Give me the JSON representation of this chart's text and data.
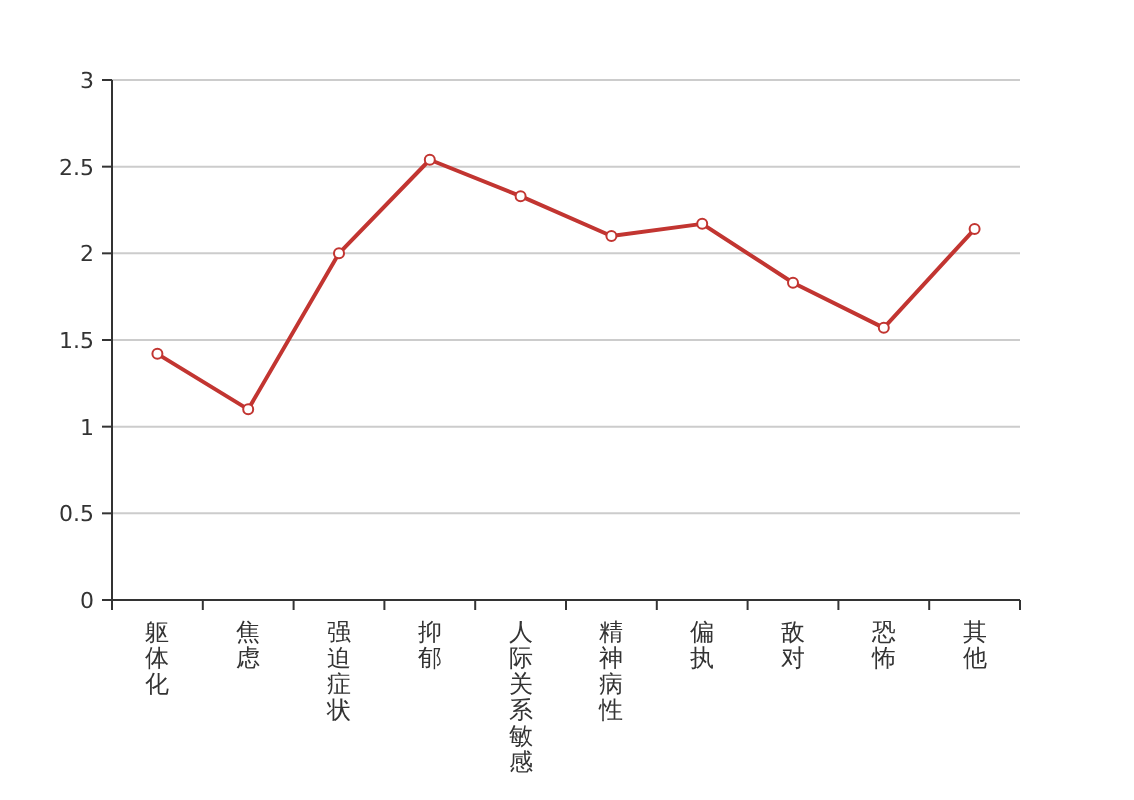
{
  "chart_data": {
    "type": "line",
    "categories": [
      "躯体化",
      "焦虑",
      "强迫症状",
      "抑郁",
      "人际关系敏感",
      "精神病性",
      "偏执",
      "敌对",
      "恐怖",
      "其他"
    ],
    "values": [
      1.42,
      1.1,
      2.0,
      2.54,
      2.33,
      2.1,
      2.17,
      1.83,
      1.57,
      2.14
    ],
    "color": "#c23531",
    "ylim": [
      0,
      3
    ],
    "yticks": [
      0,
      0.5,
      1,
      1.5,
      2,
      2.5,
      3
    ],
    "grid": "y",
    "marker": "circle",
    "line_style": "solid"
  }
}
